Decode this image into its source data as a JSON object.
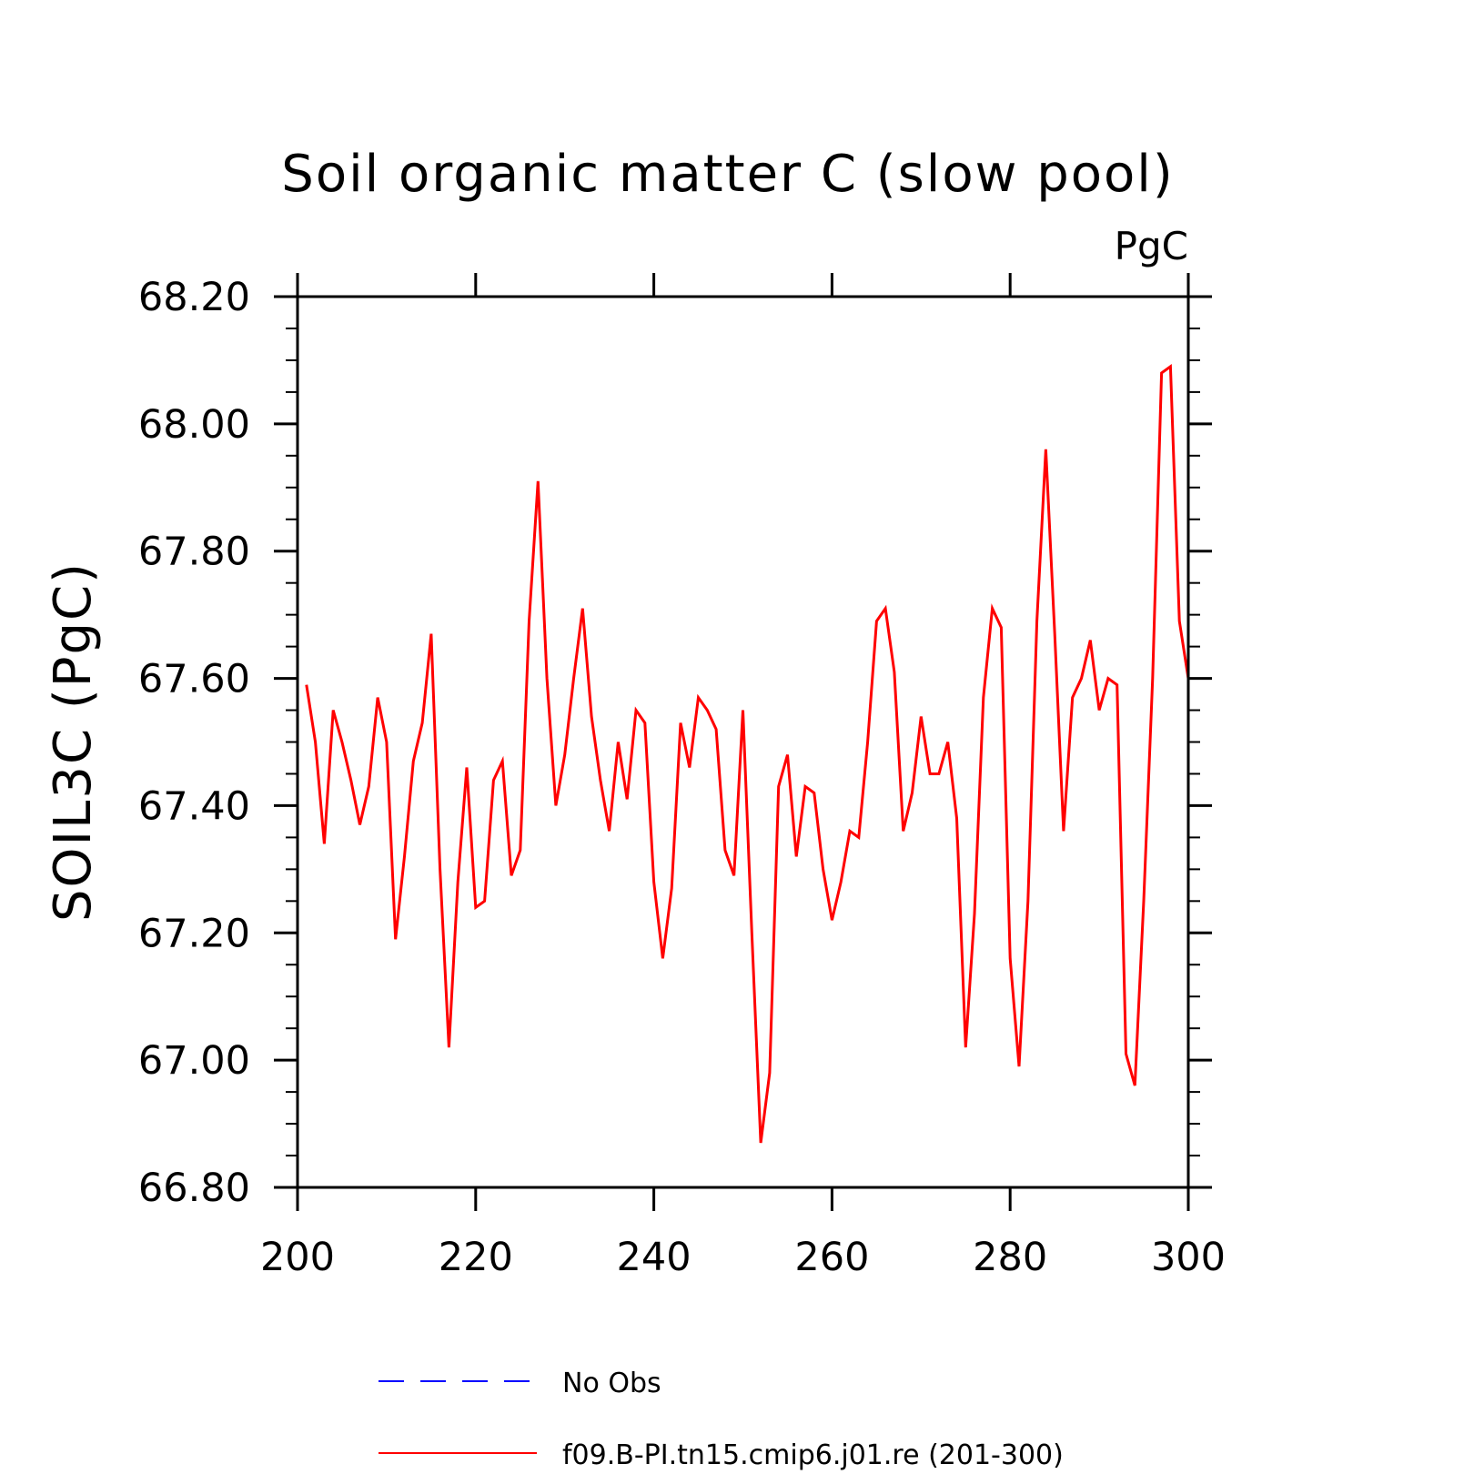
{
  "chart_data": {
    "type": "line",
    "title": "Soil organic matter C (slow pool)",
    "units_label": "PgC",
    "xlabel": "",
    "ylabel": "SOIL3C  (PgC)",
    "xlim": [
      200,
      300
    ],
    "ylim": [
      66.8,
      68.2
    ],
    "x_ticks": [
      "200",
      "220",
      "240",
      "260",
      "280",
      "300"
    ],
    "y_ticks": [
      "66.80",
      "67.00",
      "67.20",
      "67.40",
      "67.60",
      "67.80",
      "68.00",
      "68.20"
    ],
    "grid": false,
    "legend_position": "bottom",
    "legend": [
      {
        "label": "No Obs",
        "color": "#0000ff",
        "style": "dashed"
      },
      {
        "label": "f09.B-PI.tn15.cmip6.j01.re (201-300)",
        "color": "#ff0000",
        "style": "solid"
      }
    ],
    "series": [
      {
        "name": "f09.B-PI.tn15.cmip6.j01.re (201-300)",
        "color": "#ff0000",
        "x": [
          201,
          202,
          203,
          204,
          205,
          206,
          207,
          208,
          209,
          210,
          211,
          212,
          213,
          214,
          215,
          216,
          217,
          218,
          219,
          220,
          221,
          222,
          223,
          224,
          225,
          226,
          227,
          228,
          229,
          230,
          231,
          232,
          233,
          234,
          235,
          236,
          237,
          238,
          239,
          240,
          241,
          242,
          243,
          244,
          245,
          246,
          247,
          248,
          249,
          250,
          251,
          252,
          253,
          254,
          255,
          256,
          257,
          258,
          259,
          260,
          261,
          262,
          263,
          264,
          265,
          266,
          267,
          268,
          269,
          270,
          271,
          272,
          273,
          274,
          275,
          276,
          277,
          278,
          279,
          280,
          281,
          282,
          283,
          284,
          285,
          286,
          287,
          288,
          289,
          290,
          291,
          292,
          293,
          294,
          295,
          296,
          297,
          298,
          299,
          300
        ],
        "values": [
          67.59,
          67.5,
          67.34,
          67.55,
          67.5,
          67.44,
          67.37,
          67.43,
          67.57,
          67.5,
          67.19,
          67.32,
          67.47,
          67.53,
          67.67,
          67.3,
          67.02,
          67.28,
          67.46,
          67.24,
          67.25,
          67.44,
          67.47,
          67.29,
          67.33,
          67.69,
          67.91,
          67.6,
          67.4,
          67.48,
          67.6,
          67.71,
          67.54,
          67.44,
          67.36,
          67.5,
          67.41,
          67.55,
          67.53,
          67.28,
          67.16,
          67.27,
          67.53,
          67.46,
          67.57,
          67.55,
          67.52,
          67.33,
          67.29,
          67.55,
          67.2,
          66.87,
          66.98,
          67.43,
          67.48,
          67.32,
          67.43,
          67.42,
          67.3,
          67.22,
          67.28,
          67.36,
          67.35,
          67.5,
          67.69,
          67.71,
          67.61,
          67.36,
          67.42,
          67.54,
          67.45,
          67.45,
          67.5,
          67.38,
          67.02,
          67.23,
          67.57,
          67.71,
          67.68,
          67.16,
          66.99,
          67.25,
          67.69,
          67.96,
          67.67,
          67.36,
          67.57,
          67.6,
          67.66,
          67.55,
          67.6,
          67.59,
          67.01,
          66.96,
          67.25,
          67.6,
          68.08,
          68.09,
          67.69,
          67.6
        ]
      }
    ]
  }
}
